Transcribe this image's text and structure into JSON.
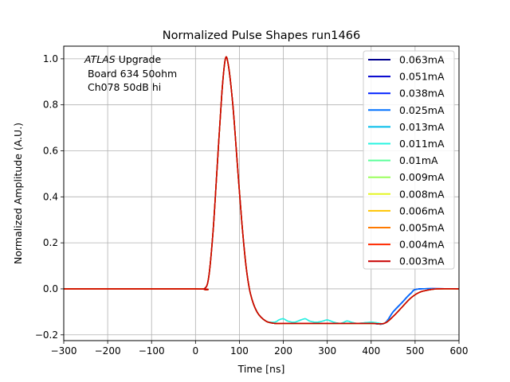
{
  "chart_data": {
    "type": "line",
    "title": "Normalized Pulse Shapes run1466",
    "xlabel": "Time [ns]",
    "ylabel": "Normalized Amplitude (A.U.)",
    "xlim": [
      -300,
      600
    ],
    "ylim": [
      -0.225,
      1.055
    ],
    "xticks": [
      -300,
      -200,
      -100,
      0,
      100,
      200,
      300,
      400,
      500,
      600
    ],
    "xtick_labels": [
      "−300",
      "−200",
      "−100",
      "0",
      "100",
      "200",
      "300",
      "400",
      "500",
      "600"
    ],
    "yticks": [
      -0.2,
      0.0,
      0.2,
      0.4,
      0.6,
      0.8,
      1.0
    ],
    "ytick_labels": [
      "−0.2",
      "0.0",
      "0.2",
      "0.4",
      "0.6",
      "0.8",
      "1.0"
    ],
    "grid": true,
    "legend_position": "top-right",
    "annotation": {
      "line1_italic": "ATLAS",
      "line1_rest": " Upgrade",
      "line2": " Board 634 50ohm",
      "line3": " Ch078 50dB hi"
    },
    "series": [
      {
        "name": "0.063mA",
        "color": "#00008f"
      },
      {
        "name": "0.051mA",
        "color": "#0000cd"
      },
      {
        "name": "0.038mA",
        "color": "#0020ff"
      },
      {
        "name": "0.025mA",
        "color": "#0070ff"
      },
      {
        "name": "0.013mA",
        "color": "#00bcea"
      },
      {
        "name": "0.011mA",
        "color": "#26f4e0"
      },
      {
        "name": "0.01mA",
        "color": "#5cff9a"
      },
      {
        "name": "0.009mA",
        "color": "#9aff5c"
      },
      {
        "name": "0.008mA",
        "color": "#e4f520"
      },
      {
        "name": "0.006mA",
        "color": "#ffc400"
      },
      {
        "name": "0.005mA",
        "color": "#ff7a00"
      },
      {
        "name": "0.004mA",
        "color": "#ff2a00"
      },
      {
        "name": "0.003mA",
        "color": "#c80000"
      }
    ],
    "shape_points_common": [
      [
        -300,
        0.0
      ],
      [
        0,
        0.0
      ],
      [
        20,
        0.0
      ],
      [
        30,
        0.05
      ],
      [
        40,
        0.25
      ],
      [
        50,
        0.55
      ],
      [
        60,
        0.85
      ],
      [
        68,
        1.0
      ],
      [
        75,
        0.97
      ],
      [
        85,
        0.8
      ],
      [
        95,
        0.55
      ],
      [
        105,
        0.3
      ],
      [
        115,
        0.1
      ],
      [
        125,
        -0.02
      ],
      [
        140,
        -0.1
      ],
      [
        160,
        -0.14
      ],
      [
        180,
        -0.15
      ],
      [
        200,
        -0.15
      ],
      [
        250,
        -0.15
      ],
      [
        300,
        -0.15
      ],
      [
        350,
        -0.15
      ],
      [
        400,
        -0.15
      ],
      [
        430,
        -0.15
      ],
      [
        450,
        -0.12
      ],
      [
        470,
        -0.08
      ],
      [
        490,
        -0.04
      ],
      [
        510,
        -0.015
      ],
      [
        530,
        -0.005
      ],
      [
        550,
        0.0
      ],
      [
        600,
        0.0
      ]
    ],
    "shape_points_early_return": [
      [
        430,
        -0.15
      ],
      [
        450,
        -0.1
      ],
      [
        470,
        -0.06
      ],
      [
        490,
        -0.02
      ],
      [
        510,
        0.0
      ],
      [
        600,
        0.0
      ]
    ],
    "shape_points_ripple": [
      [
        180,
        -0.145
      ],
      [
        190,
        -0.135
      ],
      [
        200,
        -0.13
      ],
      [
        210,
        -0.14
      ],
      [
        225,
        -0.145
      ],
      [
        240,
        -0.135
      ],
      [
        250,
        -0.13
      ],
      [
        260,
        -0.14
      ],
      [
        275,
        -0.145
      ],
      [
        290,
        -0.14
      ],
      [
        300,
        -0.135
      ],
      [
        315,
        -0.145
      ],
      [
        330,
        -0.15
      ],
      [
        345,
        -0.14
      ],
      [
        355,
        -0.145
      ],
      [
        370,
        -0.15
      ],
      [
        400,
        -0.145
      ],
      [
        420,
        -0.15
      ]
    ]
  }
}
